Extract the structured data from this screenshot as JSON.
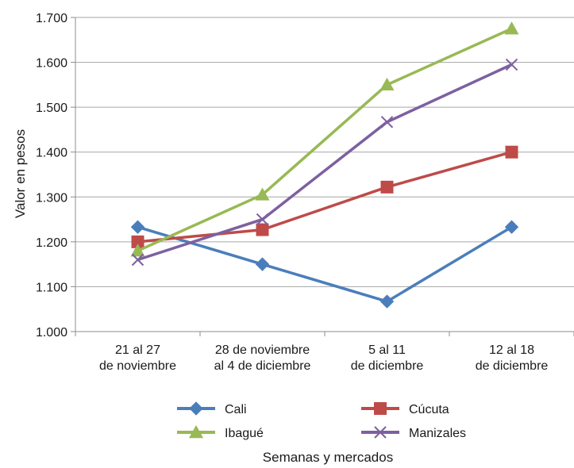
{
  "chart_data": {
    "type": "line",
    "xlabel": "Semanas y mercados",
    "ylabel": "Valor en pesos",
    "ylim": [
      1000,
      1700
    ],
    "yticks": [
      "1.000",
      "1.100",
      "1.200",
      "1.300",
      "1.400",
      "1.500",
      "1.600",
      "1.700"
    ],
    "categories": [
      [
        "21 al 27",
        "de noviembre"
      ],
      [
        "28 de noviembre",
        "al 4 de diciembre"
      ],
      [
        "5 al 11",
        "de diciembre"
      ],
      [
        "12 al 18",
        "de diciembre"
      ]
    ],
    "grid": true,
    "legend_position": "bottom",
    "series": [
      {
        "name": "Cali",
        "values": [
          1233,
          1150,
          1067,
          1233
        ],
        "color": "#4a7ebb",
        "marker": "diamond"
      },
      {
        "name": "Cúcuta",
        "values": [
          1200,
          1227,
          1322,
          1400
        ],
        "color": "#be4b48",
        "marker": "square"
      },
      {
        "name": "Ibagué",
        "values": [
          1180,
          1305,
          1550,
          1675
        ],
        "color": "#98b954",
        "marker": "triangle"
      },
      {
        "name": "Manizales",
        "values": [
          1160,
          1250,
          1467,
          1595
        ],
        "color": "#7d60a0",
        "marker": "x"
      }
    ]
  }
}
